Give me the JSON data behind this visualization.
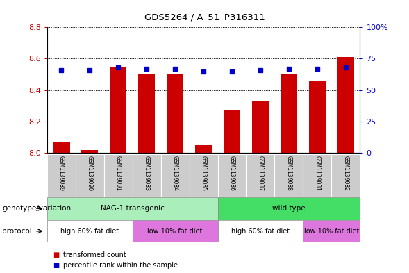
{
  "title": "GDS5264 / A_51_P316311",
  "samples": [
    "GSM1139089",
    "GSM1139090",
    "GSM1139091",
    "GSM1139083",
    "GSM1139084",
    "GSM1139085",
    "GSM1139086",
    "GSM1139087",
    "GSM1139088",
    "GSM1139081",
    "GSM1139082"
  ],
  "red_values": [
    8.07,
    8.02,
    8.55,
    8.5,
    8.5,
    8.05,
    8.27,
    8.33,
    8.5,
    8.46,
    8.61
  ],
  "blue_values": [
    66,
    66,
    68,
    67,
    67,
    65,
    65,
    66,
    67,
    67,
    68
  ],
  "ylim_left": [
    8.0,
    8.8
  ],
  "ylim_right": [
    0,
    100
  ],
  "yticks_left": [
    8.0,
    8.2,
    8.4,
    8.6,
    8.8
  ],
  "yticks_right": [
    0,
    25,
    50,
    75,
    100
  ],
  "ytick_labels_right": [
    "0",
    "25",
    "50",
    "75",
    "100%"
  ],
  "bar_color": "#cc0000",
  "dot_color": "#0000cc",
  "bar_width": 0.6,
  "genotype_groups": [
    {
      "label": "NAG-1 transgenic",
      "start": 0,
      "end": 6,
      "color": "#aaeebb"
    },
    {
      "label": "wild type",
      "start": 6,
      "end": 11,
      "color": "#44dd66"
    }
  ],
  "protocol_groups": [
    {
      "label": "high 60% fat diet",
      "start": 0,
      "end": 3,
      "color": "#dd88dd"
    },
    {
      "label": "low 10% fat diet",
      "start": 3,
      "end": 6,
      "color": "#dd88dd"
    },
    {
      "label": "high 60% fat diet",
      "start": 6,
      "end": 9,
      "color": "#dd88dd"
    },
    {
      "label": "low 10% fat diet",
      "start": 9,
      "end": 11,
      "color": "#dd88dd"
    }
  ],
  "legend_items": [
    {
      "label": "transformed count",
      "color": "#cc0000"
    },
    {
      "label": "percentile rank within the sample",
      "color": "#0000cc"
    }
  ],
  "geno_label": "genotype/variation",
  "proto_label": "protocol",
  "tick_color_left": "#cc0000",
  "tick_color_right": "#0000cc",
  "fig_width": 5.89,
  "fig_height": 3.93,
  "dpi": 100
}
